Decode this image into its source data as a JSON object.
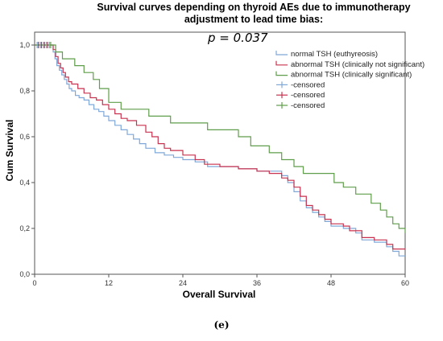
{
  "chart_data": {
    "type": "line",
    "title_line1": "Survival curves depending on thyroid AEs due to immunotherapy",
    "title_line2": "adjustment to lead time bias:",
    "annotation": "p = 0.037",
    "xlabel": "Overall Survival",
    "ylabel": "Cum Survival",
    "xlim": [
      0,
      60
    ],
    "ylim": [
      0,
      1
    ],
    "x_ticks": [
      0,
      12,
      24,
      36,
      48,
      60
    ],
    "x_tick_labels": [
      "0",
      "12",
      "24",
      "36",
      "48",
      "60"
    ],
    "y_ticks": [
      0.0,
      0.2,
      0.4,
      0.6,
      0.8,
      1.0
    ],
    "y_tick_labels": [
      "0,0",
      "0,2",
      "0,4",
      "0,6",
      "0,8",
      "1,0"
    ],
    "grid": false,
    "legend_position": "top-right",
    "caption": "(e)",
    "series": [
      {
        "name": "normal TSH (euthyreosis)",
        "color": "#7fa8d8",
        "points": [
          [
            0,
            1.0
          ],
          [
            2.8,
            1.0
          ],
          [
            3.0,
            0.97
          ],
          [
            3.3,
            0.94
          ],
          [
            3.6,
            0.91
          ],
          [
            4.0,
            0.89
          ],
          [
            4.4,
            0.87
          ],
          [
            4.8,
            0.85
          ],
          [
            5.2,
            0.83
          ],
          [
            5.6,
            0.81
          ],
          [
            6.0,
            0.8
          ],
          [
            6.6,
            0.78
          ],
          [
            7.2,
            0.77
          ],
          [
            8.0,
            0.76
          ],
          [
            8.8,
            0.74
          ],
          [
            9.6,
            0.72
          ],
          [
            10.4,
            0.71
          ],
          [
            11.2,
            0.69
          ],
          [
            12.0,
            0.67
          ],
          [
            13.0,
            0.65
          ],
          [
            14.0,
            0.63
          ],
          [
            15.0,
            0.61
          ],
          [
            16.0,
            0.59
          ],
          [
            17.0,
            0.57
          ],
          [
            18.0,
            0.55
          ],
          [
            19.5,
            0.53
          ],
          [
            21.0,
            0.52
          ],
          [
            22.5,
            0.51
          ],
          [
            24.0,
            0.5
          ],
          [
            26.0,
            0.49
          ],
          [
            28.0,
            0.47
          ],
          [
            30.0,
            0.47
          ],
          [
            33.0,
            0.46
          ],
          [
            36.0,
            0.45
          ],
          [
            38.0,
            0.45
          ],
          [
            40.0,
            0.43
          ],
          [
            41.0,
            0.4
          ],
          [
            42.0,
            0.36
          ],
          [
            43.0,
            0.32
          ],
          [
            44.0,
            0.29
          ],
          [
            45.0,
            0.27
          ],
          [
            46.0,
            0.25
          ],
          [
            47.0,
            0.23
          ],
          [
            48.0,
            0.21
          ],
          [
            50.0,
            0.2
          ],
          [
            52.0,
            0.18
          ],
          [
            53.0,
            0.15
          ],
          [
            55.0,
            0.14
          ],
          [
            57.0,
            0.12
          ],
          [
            58.0,
            0.1
          ],
          [
            59.0,
            0.08
          ],
          [
            60.0,
            0.08
          ]
        ]
      },
      {
        "name": "abnormal TSH (clinically not significant)",
        "color": "#c8324f",
        "points": [
          [
            0,
            1.0
          ],
          [
            2.8,
            1.0
          ],
          [
            3.0,
            0.98
          ],
          [
            3.4,
            0.95
          ],
          [
            3.8,
            0.92
          ],
          [
            4.2,
            0.9
          ],
          [
            4.6,
            0.88
          ],
          [
            5.0,
            0.86
          ],
          [
            5.5,
            0.84
          ],
          [
            6.0,
            0.83
          ],
          [
            7.0,
            0.81
          ],
          [
            8.0,
            0.79
          ],
          [
            9.0,
            0.77
          ],
          [
            10.0,
            0.76
          ],
          [
            11.0,
            0.74
          ],
          [
            12.0,
            0.72
          ],
          [
            13.0,
            0.7
          ],
          [
            14.0,
            0.68
          ],
          [
            15.0,
            0.67
          ],
          [
            16.5,
            0.65
          ],
          [
            18.0,
            0.62
          ],
          [
            19.0,
            0.6
          ],
          [
            20.0,
            0.57
          ],
          [
            21.0,
            0.55
          ],
          [
            22.0,
            0.54
          ],
          [
            24.0,
            0.52
          ],
          [
            26.0,
            0.5
          ],
          [
            27.5,
            0.48
          ],
          [
            30.0,
            0.47
          ],
          [
            33.0,
            0.46
          ],
          [
            36.0,
            0.45
          ],
          [
            38.0,
            0.44
          ],
          [
            40.0,
            0.42
          ],
          [
            41.0,
            0.41
          ],
          [
            42.0,
            0.38
          ],
          [
            43.0,
            0.34
          ],
          [
            44.0,
            0.3
          ],
          [
            45.0,
            0.28
          ],
          [
            46.0,
            0.26
          ],
          [
            47.0,
            0.24
          ],
          [
            48.0,
            0.22
          ],
          [
            50.0,
            0.21
          ],
          [
            51.0,
            0.19
          ],
          [
            53.0,
            0.16
          ],
          [
            55.0,
            0.15
          ],
          [
            57.0,
            0.13
          ],
          [
            58.0,
            0.11
          ],
          [
            60.0,
            0.11
          ]
        ]
      },
      {
        "name": "abnormal TSH (clinically significant)",
        "color": "#5f9e4a",
        "points": [
          [
            0,
            1.0
          ],
          [
            3.0,
            1.0
          ],
          [
            3.4,
            0.97
          ],
          [
            4.5,
            0.94
          ],
          [
            6.5,
            0.91
          ],
          [
            8.0,
            0.88
          ],
          [
            9.5,
            0.85
          ],
          [
            10.5,
            0.81
          ],
          [
            12.0,
            0.75
          ],
          [
            14.0,
            0.72
          ],
          [
            17.0,
            0.72
          ],
          [
            18.5,
            0.69
          ],
          [
            21.0,
            0.69
          ],
          [
            22.0,
            0.66
          ],
          [
            26.0,
            0.66
          ],
          [
            28.0,
            0.63
          ],
          [
            31.0,
            0.63
          ],
          [
            33.0,
            0.6
          ],
          [
            35.0,
            0.56
          ],
          [
            36.5,
            0.56
          ],
          [
            38.0,
            0.53
          ],
          [
            40.0,
            0.5
          ],
          [
            42.0,
            0.47
          ],
          [
            43.5,
            0.44
          ],
          [
            47.0,
            0.44
          ],
          [
            48.5,
            0.4
          ],
          [
            50.0,
            0.38
          ],
          [
            52.0,
            0.35
          ],
          [
            54.5,
            0.31
          ],
          [
            56.0,
            0.28
          ],
          [
            57.0,
            0.25
          ],
          [
            58.0,
            0.22
          ],
          [
            59.0,
            0.2
          ],
          [
            60.0,
            0.18
          ]
        ]
      }
    ],
    "censor_legend": [
      {
        "label": "-censored",
        "color": "#7fa8d8"
      },
      {
        "label": "-censored",
        "color": "#c8324f"
      },
      {
        "label": "-censored",
        "color": "#5f9e4a"
      }
    ],
    "censor_marks": [
      {
        "color": "#7fa8d8",
        "x": [
          0.4,
          0.9,
          1.4,
          1.9,
          2.4
        ],
        "y": 1.0
      },
      {
        "color": "#c8324f",
        "x": [
          0.6,
          1.1,
          1.6,
          2.1
        ],
        "y": 1.0
      },
      {
        "color": "#5f9e4a",
        "x": [
          2.6
        ],
        "y": 1.0
      }
    ]
  }
}
